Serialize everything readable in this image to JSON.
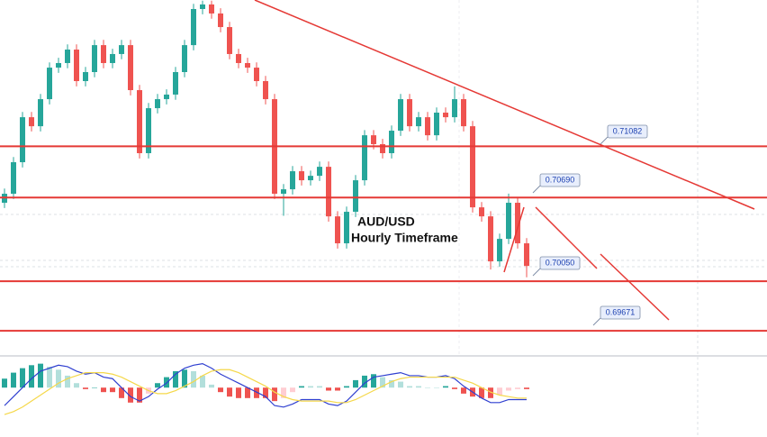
{
  "chart_data": [
    {
      "type": "candlestick",
      "ylim": [
        0.695,
        0.722
      ],
      "up_color": "#26a69a",
      "down_color": "#ef5350",
      "level_color": "#e53935",
      "annotations": [
        "AUD/USD",
        "Hourly Timeframe"
      ],
      "levels": [
        0.71082,
        {
          "value": 0.7069,
          "label": "0.70690"
        },
        {
          "value": 0.7005,
          "label": "0.70050"
        },
        0.69671
      ],
      "open": [
        0.7065,
        0.70719,
        0.7096,
        0.71304,
        0.71235,
        0.71442,
        0.71683,
        0.71718,
        0.71821,
        0.7158,
        0.71649,
        0.71855,
        0.71718,
        0.71787,
        0.71855,
        0.71511,
        0.71029,
        0.71373,
        0.71442,
        0.71477,
        0.71649,
        0.71855,
        0.72131,
        0.72166,
        0.72097,
        0.71993,
        0.71787,
        0.71718,
        0.71683,
        0.7158,
        0.71442,
        0.70719,
        0.70753,
        0.70891,
        0.70822,
        0.70856,
        0.70925,
        0.70546,
        0.7034,
        0.70581,
        0.70822,
        0.71166,
        0.71098,
        0.71029,
        0.71201,
        0.71442,
        0.71235,
        0.71304,
        0.71166,
        0.71339,
        0.71304,
        0.71442,
        0.71235,
        0.70615,
        0.70546,
        0.70202,
        0.70374,
        0.7065,
        0.7034
      ],
      "high": [
        0.70759,
        0.71,
        0.71344,
        0.71344,
        0.71482,
        0.71723,
        0.71758,
        0.71861,
        0.71861,
        0.71689,
        0.71895,
        0.71895,
        0.71827,
        0.71895,
        0.71895,
        0.71551,
        0.71413,
        0.71482,
        0.71517,
        0.71689,
        0.71895,
        0.72171,
        0.72195,
        0.72195,
        0.72137,
        0.72033,
        0.71827,
        0.71758,
        0.71723,
        0.7162,
        0.71482,
        0.70793,
        0.70931,
        0.70931,
        0.70896,
        0.70965,
        0.70965,
        0.70586,
        0.70621,
        0.70862,
        0.71206,
        0.71206,
        0.71138,
        0.71241,
        0.71482,
        0.71482,
        0.71344,
        0.71344,
        0.71379,
        0.71379,
        0.7154,
        0.71482,
        0.71275,
        0.70655,
        0.70586,
        0.70414,
        0.7072,
        0.7069,
        0.7038
      ],
      "low": [
        0.7061,
        0.70679,
        0.7092,
        0.71195,
        0.71195,
        0.71402,
        0.71643,
        0.71678,
        0.7154,
        0.7154,
        0.71609,
        0.71678,
        0.71678,
        0.71747,
        0.71471,
        0.70989,
        0.70989,
        0.71333,
        0.71402,
        0.71437,
        0.71609,
        0.71815,
        0.72091,
        0.72057,
        0.71953,
        0.71747,
        0.71678,
        0.71643,
        0.7154,
        0.71402,
        0.70679,
        0.7055,
        0.70713,
        0.70782,
        0.70782,
        0.70816,
        0.70506,
        0.703,
        0.703,
        0.70541,
        0.70782,
        0.71058,
        0.70989,
        0.70989,
        0.71161,
        0.71195,
        0.71195,
        0.71126,
        0.71126,
        0.71264,
        0.71264,
        0.71195,
        0.70575,
        0.70506,
        0.7014,
        0.70162,
        0.70334,
        0.703,
        0.7008
      ],
      "close": [
        0.70719,
        0.7096,
        0.71304,
        0.71235,
        0.71442,
        0.71683,
        0.71718,
        0.71821,
        0.7158,
        0.71649,
        0.71855,
        0.71718,
        0.71787,
        0.71855,
        0.71511,
        0.71029,
        0.71373,
        0.71442,
        0.71477,
        0.71649,
        0.71855,
        0.72131,
        0.72166,
        0.72097,
        0.71993,
        0.71787,
        0.71718,
        0.71683,
        0.7158,
        0.71442,
        0.70719,
        0.70753,
        0.70891,
        0.70822,
        0.70856,
        0.70925,
        0.70546,
        0.7034,
        0.70581,
        0.70822,
        0.71166,
        0.71098,
        0.71029,
        0.71201,
        0.71442,
        0.71235,
        0.71304,
        0.71166,
        0.71339,
        0.71304,
        0.71442,
        0.71235,
        0.70615,
        0.70546,
        0.70202,
        0.70374,
        0.7065,
        0.7034,
        0.70167
      ]
    },
    {
      "type": "macd",
      "ylim": [
        -0.003,
        0.002
      ],
      "series": [
        {
          "color": "#26a69a",
          "values": [
            0.0006,
            0.001,
            0.0013,
            0.0015,
            0.0016,
            0.0014,
            0.0012,
            0.0008,
            0.0003,
            -0.0001,
            0,
            -0.0003,
            -0.0003,
            -0.0007,
            -0.001,
            -0.001,
            -0.0004,
            0.0003,
            0.0007,
            0.0011,
            0.0012,
            0.0011,
            0.0008,
            0.0002,
            -0.0003,
            -0.0006,
            -0.0007,
            -0.0007,
            -0.0007,
            -0.0007,
            -0.0009,
            -0.0007,
            -0.0003,
            0.0001,
            0.0001,
            0.0001,
            -0.0002,
            -0.0002,
            0.0001,
            0.0005,
            0.0008,
            0.0009,
            0.0007,
            0.0005,
            0.0004,
            0.0001,
            0.0001,
            0,
            0,
            0.0001,
            -0.0001,
            -0.0004,
            -0.0006,
            -0.0007,
            -0.0007,
            -0.0005,
            -0.0002,
            -0.0001,
            -0.0001
          ]
        },
        {
          "color": "#2f3fd0",
          "values": [
            -0.0012,
            -0.0006,
            0,
            0.0006,
            0.0011,
            0.0013,
            0.0015,
            0.0014,
            0.0011,
            0.0009,
            0.001,
            0.0007,
            0.0006,
            0,
            -0.0006,
            -0.0009,
            -0.0006,
            -0.0001,
            0.0003,
            0.0009,
            0.0013,
            0.0015,
            0.0016,
            0.0013,
            0.0009,
            0.0006,
            0.0003,
            0,
            -0.0003,
            -0.0006,
            -0.0012,
            -0.0013,
            -0.0011,
            -0.0008,
            -0.0008,
            -0.0008,
            -0.0011,
            -0.0012,
            -0.0009,
            -0.0003,
            0.0003,
            0.0007,
            0.0008,
            0.0009,
            0.001,
            0.0008,
            0.0008,
            0.0007,
            0.0007,
            0.0008,
            0.0006,
            0.0001,
            -0.0003,
            -0.0007,
            -0.001,
            -0.001,
            -0.0008,
            -0.0008,
            -0.0008
          ]
        },
        {
          "color": "#f5d84a",
          "values": [
            -0.0018,
            -0.0016,
            -0.0013,
            -0.0009,
            -0.0005,
            -0.0001,
            0.0003,
            0.0006,
            0.0008,
            0.001,
            0.001,
            0.001,
            0.0009,
            0.0007,
            0.0004,
            0.0001,
            -0.0002,
            -0.0004,
            -0.0004,
            -0.0002,
            0.0001,
            0.0004,
            0.0008,
            0.0011,
            0.0012,
            0.0012,
            0.001,
            0.0007,
            0.0004,
            0.0001,
            -0.0003,
            -0.0006,
            -0.0008,
            -0.0009,
            -0.0009,
            -0.0009,
            -0.0009,
            -0.001,
            -0.001,
            -0.0008,
            -0.0005,
            -0.0002,
            0.0001,
            0.0004,
            0.0006,
            0.0007,
            0.0007,
            0.0007,
            0.0007,
            0.0007,
            0.0007,
            0.0005,
            0.0003,
            0,
            -0.0003,
            -0.0005,
            -0.0006,
            -0.0007,
            -0.0007
          ]
        }
      ]
    }
  ]
}
